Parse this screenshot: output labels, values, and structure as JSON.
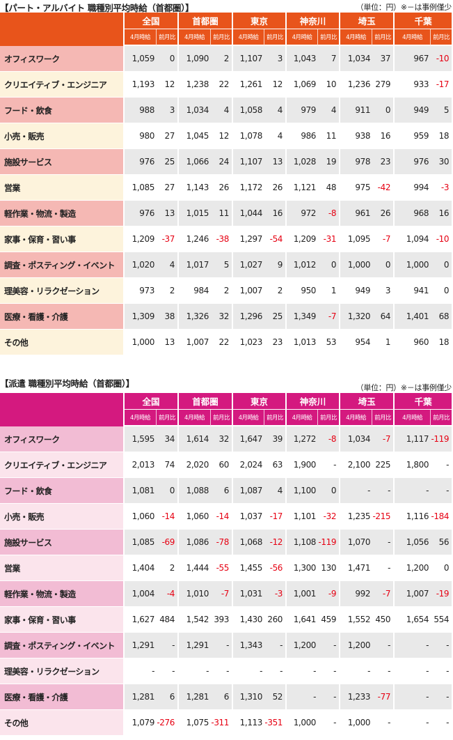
{
  "tables": [
    {
      "title": "【パート・アルバイト 職種別平均時給（首都圏）】",
      "note": "（単位：円）※－は事例僅少",
      "regions": [
        "全国",
        "首都圏",
        "東京",
        "神奈川",
        "埼玉",
        "千葉"
      ],
      "subheaders": [
        "4月時給",
        "前月比"
      ],
      "accent_color": "#e8541b",
      "rows": [
        {
          "label": "オフィスワーク",
          "values": [
            "1,059",
            "0",
            "1,090",
            "2",
            "1,107",
            "3",
            "1,043",
            "7",
            "1,034",
            "37",
            "967",
            "-10"
          ]
        },
        {
          "label": "クリエイティブ・エンジニア",
          "values": [
            "1,193",
            "12",
            "1,238",
            "22",
            "1,261",
            "12",
            "1,069",
            "10",
            "1,236",
            "279",
            "933",
            "-17"
          ]
        },
        {
          "label": "フード・飲食",
          "values": [
            "988",
            "3",
            "1,034",
            "4",
            "1,058",
            "4",
            "979",
            "4",
            "911",
            "0",
            "949",
            "5"
          ]
        },
        {
          "label": "小売・販売",
          "values": [
            "980",
            "27",
            "1,045",
            "12",
            "1,078",
            "4",
            "986",
            "11",
            "938",
            "16",
            "959",
            "18"
          ]
        },
        {
          "label": "施設サービス",
          "values": [
            "976",
            "25",
            "1,066",
            "24",
            "1,107",
            "13",
            "1,028",
            "19",
            "978",
            "23",
            "976",
            "30"
          ]
        },
        {
          "label": "営業",
          "values": [
            "1,085",
            "27",
            "1,143",
            "26",
            "1,172",
            "26",
            "1,121",
            "48",
            "975",
            "-42",
            "994",
            "-3"
          ]
        },
        {
          "label": "軽作業・物流・製造",
          "values": [
            "976",
            "13",
            "1,015",
            "11",
            "1,044",
            "16",
            "972",
            "-8",
            "961",
            "26",
            "968",
            "16"
          ]
        },
        {
          "label": "家事・保育・習い事",
          "values": [
            "1,209",
            "-37",
            "1,246",
            "-38",
            "1,297",
            "-54",
            "1,209",
            "-31",
            "1,095",
            "-7",
            "1,094",
            "-10"
          ]
        },
        {
          "label": "調査・ポスティング・イベント",
          "values": [
            "1,020",
            "4",
            "1,017",
            "5",
            "1,027",
            "9",
            "1,012",
            "0",
            "1,000",
            "0",
            "1,000",
            "0"
          ]
        },
        {
          "label": "理美容・リラクゼーション",
          "values": [
            "973",
            "2",
            "984",
            "2",
            "1,007",
            "2",
            "950",
            "1",
            "949",
            "3",
            "941",
            "0"
          ]
        },
        {
          "label": "医療・看護・介護",
          "values": [
            "1,309",
            "38",
            "1,326",
            "32",
            "1,296",
            "25",
            "1,349",
            "-7",
            "1,320",
            "64",
            "1,401",
            "68"
          ]
        },
        {
          "label": "その他",
          "values": [
            "1,000",
            "13",
            "1,007",
            "22",
            "1,023",
            "23",
            "1,013",
            "53",
            "954",
            "1",
            "960",
            "18"
          ]
        }
      ]
    },
    {
      "title": "【派遣 職種別平均時給（首都圏）】",
      "note": "（単位：円）※－は事例僅少",
      "regions": [
        "全国",
        "首都圏",
        "東京",
        "神奈川",
        "埼玉",
        "千葉"
      ],
      "subheaders": [
        "4月時給",
        "前月比"
      ],
      "accent_color": "#d4197f",
      "rows": [
        {
          "label": "オフィスワーク",
          "values": [
            "1,595",
            "34",
            "1,614",
            "32",
            "1,647",
            "39",
            "1,272",
            "-8",
            "1,034",
            "-7",
            "1,117",
            "-119"
          ]
        },
        {
          "label": "クリエイティブ・エンジニア",
          "values": [
            "2,013",
            "74",
            "2,020",
            "60",
            "2,024",
            "63",
            "1,900",
            "-",
            "2,100",
            "225",
            "1,800",
            "-"
          ]
        },
        {
          "label": "フード・飲食",
          "values": [
            "1,081",
            "0",
            "1,088",
            "6",
            "1,087",
            "4",
            "1,100",
            "0",
            "-",
            "-",
            "-",
            "-"
          ]
        },
        {
          "label": "小売・販売",
          "values": [
            "1,060",
            "-14",
            "1,060",
            "-14",
            "1,037",
            "-17",
            "1,101",
            "-32",
            "1,235",
            "-215",
            "1,116",
            "-184"
          ]
        },
        {
          "label": "施設サービス",
          "values": [
            "1,085",
            "-69",
            "1,086",
            "-78",
            "1,068",
            "-12",
            "1,108",
            "-119",
            "1,070",
            "-",
            "1,056",
            "56"
          ]
        },
        {
          "label": "営業",
          "values": [
            "1,404",
            "2",
            "1,444",
            "-55",
            "1,455",
            "-56",
            "1,300",
            "130",
            "1,471",
            "-",
            "1,200",
            "0"
          ]
        },
        {
          "label": "軽作業・物流・製造",
          "values": [
            "1,004",
            "-4",
            "1,010",
            "-7",
            "1,031",
            "-3",
            "1,001",
            "-9",
            "992",
            "-7",
            "1,007",
            "-19"
          ]
        },
        {
          "label": "家事・保育・習い事",
          "values": [
            "1,627",
            "484",
            "1,542",
            "393",
            "1,430",
            "260",
            "1,641",
            "459",
            "1,552",
            "450",
            "1,654",
            "554"
          ]
        },
        {
          "label": "調査・ポスティング・イベント",
          "values": [
            "1,291",
            "-",
            "1,291",
            "-",
            "1,343",
            "-",
            "1,200",
            "-",
            "1,200",
            "-",
            "-",
            "-"
          ]
        },
        {
          "label": "理美容・リラクゼーション",
          "values": [
            "-",
            "-",
            "-",
            "-",
            "-",
            "-",
            "-",
            "-",
            "-",
            "-",
            "-",
            "-"
          ]
        },
        {
          "label": "医療・看護・介護",
          "values": [
            "1,281",
            "6",
            "1,281",
            "6",
            "1,310",
            "52",
            "-",
            "-",
            "1,233",
            "-77",
            "-",
            "-"
          ]
        },
        {
          "label": "その他",
          "values": [
            "1,079",
            "-276",
            "1,075",
            "-311",
            "1,113",
            "-351",
            "1,000",
            "-",
            "1,000",
            "-",
            "-",
            "-"
          ]
        }
      ]
    }
  ]
}
